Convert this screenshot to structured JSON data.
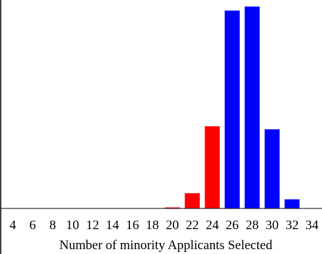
{
  "chart_data": {
    "type": "bar",
    "title": "",
    "xlabel": "Number of minority Applicants Selected",
    "ylabel": "",
    "x_ticks": [
      4,
      6,
      8,
      10,
      12,
      14,
      16,
      18,
      20,
      22,
      24,
      26,
      28,
      30,
      32,
      34
    ],
    "xlim": [
      3,
      35
    ],
    "ylim": [
      0,
      1
    ],
    "bars": [
      {
        "x": 20,
        "value": 0.005,
        "color": "#ff0000"
      },
      {
        "x": 22,
        "value": 0.075,
        "color": "#ff0000"
      },
      {
        "x": 24,
        "value": 0.405,
        "color": "#ff0000"
      },
      {
        "x": 26,
        "value": 0.975,
        "color": "#0000ff"
      },
      {
        "x": 28,
        "value": 0.995,
        "color": "#0000ff"
      },
      {
        "x": 30,
        "value": 0.39,
        "color": "#0000ff"
      },
      {
        "x": 32,
        "value": 0.045,
        "color": "#0000ff"
      }
    ],
    "colors": {
      "left_tail": "#ff0000",
      "main": "#0000ff"
    }
  }
}
